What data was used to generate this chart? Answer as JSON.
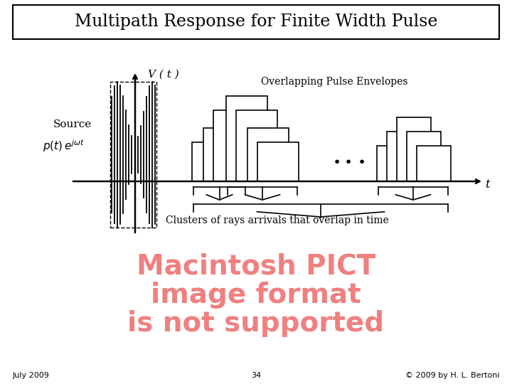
{
  "title": "Multipath Response for Finite Width Pulse",
  "bg_color": "#ffffff",
  "title_fontsize": 17,
  "footer_left": "July 2009",
  "footer_center": "34",
  "footer_right": "© 2009 by H. L. Bertoni",
  "vt_label": "V ( t )",
  "t_label": "t",
  "overlapping_label": "Overlapping Pulse Envelopes",
  "clusters_label": "Clusters of rays arrivals that overlap in time",
  "macintosh_line1": "Macintosh PICT",
  "macintosh_line2": "image format",
  "macintosh_line3": "is not supported",
  "macintosh_color": "#F08080"
}
